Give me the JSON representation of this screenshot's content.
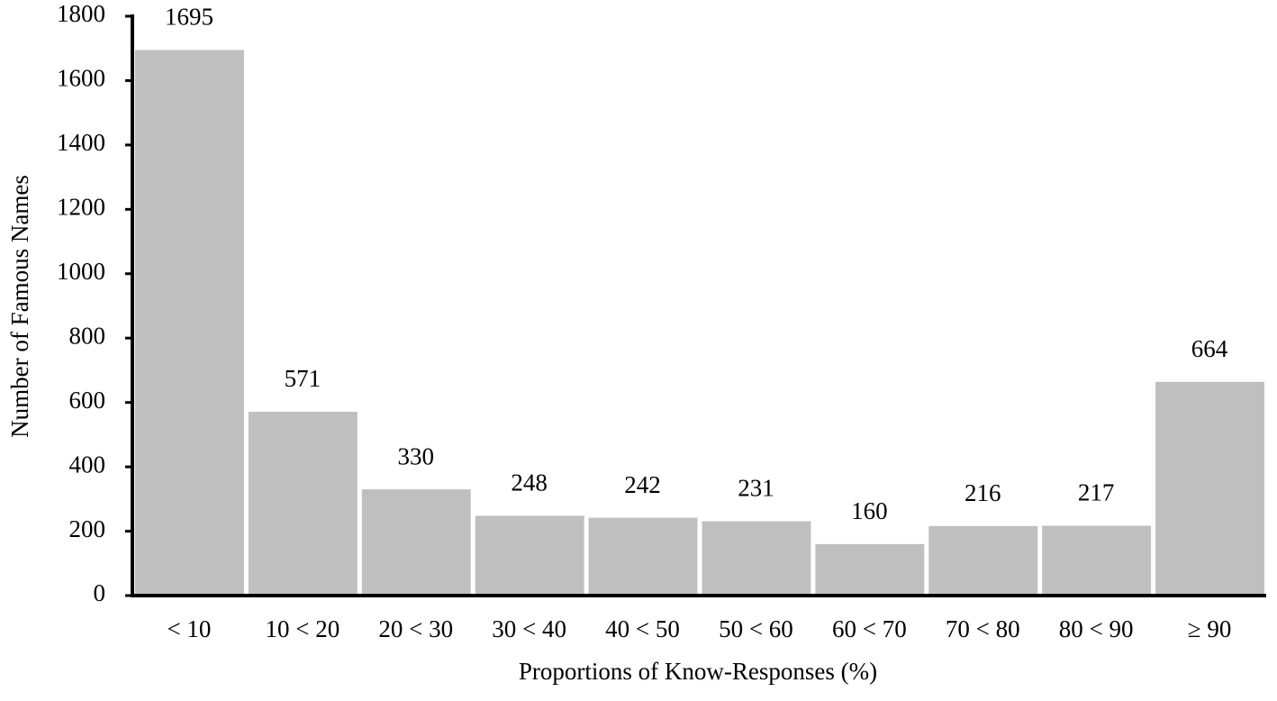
{
  "chart_data": {
    "type": "bar",
    "x_label": "Proportions of Know-Responses (%)",
    "y_label": "Number of Famous Names",
    "categories": [
      "< 10",
      "10 < 20",
      "20 < 30",
      "30 < 40",
      "40 < 50",
      "50 < 60",
      "60 < 70",
      "70 < 80",
      "80 < 90",
      "≥ 90"
    ],
    "values": [
      1695,
      571,
      330,
      248,
      242,
      231,
      160,
      216,
      217,
      664
    ],
    "color": "#bfbfbf",
    "ylim": [
      0,
      1800
    ],
    "yticks": [
      0,
      200,
      400,
      600,
      800,
      1000,
      1200,
      1400,
      1600,
      1800
    ],
    "grid": false
  }
}
